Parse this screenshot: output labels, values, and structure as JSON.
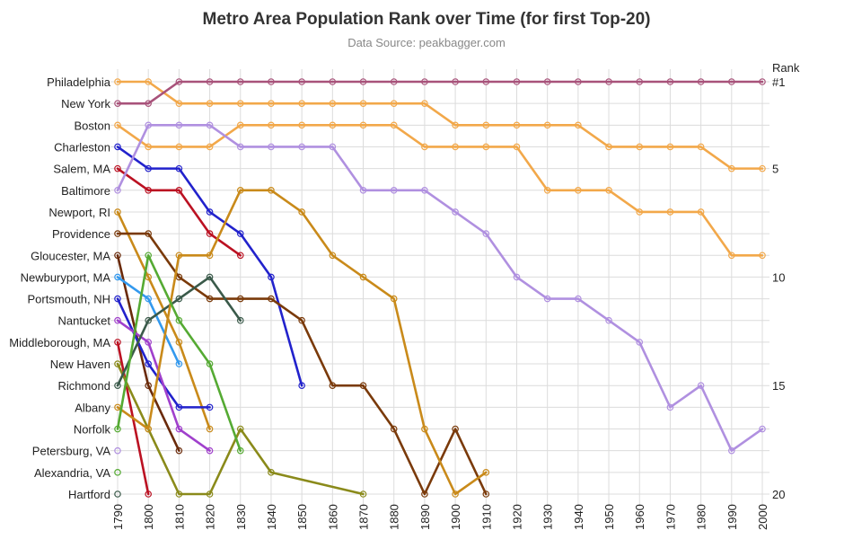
{
  "chart_data": {
    "type": "line",
    "title": "Metro Area Population Rank over Time (for first Top-20)",
    "subtitle": "Data Source: peakbagger.com",
    "y_axis_title": "Rank",
    "y_axis_reversed": true,
    "ylim": [
      1,
      20
    ],
    "y_ticks": [
      {
        "value": 1,
        "label": "#1"
      },
      {
        "value": 5,
        "label": "5"
      },
      {
        "value": 10,
        "label": "10"
      },
      {
        "value": 15,
        "label": "15"
      },
      {
        "value": 20,
        "label": "20"
      }
    ],
    "x": [
      1790,
      1800,
      1810,
      1820,
      1830,
      1840,
      1850,
      1860,
      1870,
      1880,
      1890,
      1900,
      1910,
      1920,
      1930,
      1940,
      1950,
      1960,
      1970,
      1980,
      1990,
      2000
    ],
    "x_tick_labels": [
      "1790",
      "1800",
      "1810",
      "1820",
      "1830",
      "1840",
      "1850",
      "1860",
      "1870",
      "1880",
      "1890",
      "1900",
      "1910",
      "1920",
      "1930",
      "1940",
      "1950",
      "1960",
      "1970",
      "1980",
      "1990",
      "2000"
    ],
    "category_labels": [
      "Philadelphia",
      "New York",
      "Boston",
      "Charleston",
      "Salem, MA",
      "Baltimore",
      "Newport, RI",
      "Providence",
      "Gloucester, MA",
      "Newburyport, MA",
      "Portsmouth, NH",
      "Nantucket",
      "Middleborough, MA",
      "New Haven",
      "Richmond",
      "Albany",
      "Norfolk",
      "Petersburg, VA",
      "Alexandria, VA",
      "Hartford"
    ],
    "grid": true,
    "series": [
      {
        "name": "Philadelphia",
        "color": "#f2a84a",
        "x": [
          1790,
          1800,
          1810,
          1820,
          1830,
          1840,
          1850,
          1860,
          1870,
          1880,
          1890,
          1900,
          1910,
          1920,
          1930,
          1940,
          1950,
          1960,
          1970,
          1980,
          1990,
          2000
        ],
        "ranks": [
          1,
          1,
          2,
          2,
          2,
          2,
          2,
          2,
          2,
          2,
          2,
          3,
          3,
          3,
          3,
          3,
          4,
          4,
          4,
          4,
          5,
          5
        ]
      },
      {
        "name": "New York",
        "color": "#a8527a",
        "x": [
          1790,
          1800,
          1810,
          1820,
          1830,
          1840,
          1850,
          1860,
          1870,
          1880,
          1890,
          1900,
          1910,
          1920,
          1930,
          1940,
          1950,
          1960,
          1970,
          1980,
          1990,
          2000
        ],
        "ranks": [
          2,
          2,
          1,
          1,
          1,
          1,
          1,
          1,
          1,
          1,
          1,
          1,
          1,
          1,
          1,
          1,
          1,
          1,
          1,
          1,
          1,
          1
        ]
      },
      {
        "name": "Boston",
        "color": "#f2a84a",
        "x": [
          1790,
          1800,
          1810,
          1820,
          1830,
          1840,
          1850,
          1860,
          1870,
          1880,
          1890,
          1900,
          1910,
          1920,
          1930,
          1940,
          1950,
          1960,
          1970,
          1980,
          1990,
          2000
        ],
        "ranks": [
          3,
          4,
          4,
          4,
          3,
          3,
          3,
          3,
          3,
          3,
          4,
          4,
          4,
          4,
          6,
          6,
          6,
          7,
          7,
          7,
          9,
          9
        ]
      },
      {
        "name": "Charleston",
        "color": "#2222cc",
        "x": [
          1790,
          1800,
          1810,
          1820,
          1830,
          1840,
          1850
        ],
        "ranks": [
          4,
          5,
          5,
          7,
          8,
          10,
          15
        ]
      },
      {
        "name": "Salem, MA",
        "color": "#bb1122",
        "x": [
          1790,
          1800,
          1810,
          1820,
          1830
        ],
        "ranks": [
          5,
          6,
          6,
          8,
          9
        ]
      },
      {
        "name": "Baltimore",
        "color": "#b090e0",
        "x": [
          1790,
          1800,
          1810,
          1820,
          1830,
          1840,
          1850,
          1860,
          1870,
          1880,
          1890,
          1900,
          1910,
          1920,
          1930,
          1940,
          1950,
          1960,
          1970,
          1980,
          1990,
          2000
        ],
        "ranks": [
          6,
          3,
          3,
          3,
          4,
          4,
          4,
          4,
          6,
          6,
          6,
          7,
          8,
          10,
          11,
          11,
          12,
          13,
          16,
          15,
          18,
          17
        ]
      },
      {
        "name": "Newport, RI",
        "color": "#c98a1a",
        "x": [
          1790,
          1800,
          1810,
          1820
        ],
        "ranks": [
          7,
          10,
          13,
          17
        ]
      },
      {
        "name": "Providence",
        "color": "#7a3a0a",
        "x": [
          1790,
          1800,
          1810,
          1820,
          1830,
          1840,
          1850,
          1860,
          1870,
          1880,
          1890,
          1900,
          1910
        ],
        "ranks": [
          8,
          8,
          10,
          11,
          11,
          11,
          12,
          15,
          15,
          17,
          20,
          17,
          20
        ]
      },
      {
        "name": "Gloucester, MA",
        "color": "#6a2a0a",
        "x": [
          1790,
          1800,
          1810
        ],
        "ranks": [
          9,
          15,
          18
        ]
      },
      {
        "name": "Newburyport, MA",
        "color": "#3399ee",
        "x": [
          1790,
          1800,
          1810
        ],
        "ranks": [
          10,
          11,
          14
        ]
      },
      {
        "name": "Portsmouth, NH",
        "color": "#2222cc",
        "x": [
          1790,
          1800,
          1810,
          1820
        ],
        "ranks": [
          11,
          14,
          16,
          16
        ]
      },
      {
        "name": "Nantucket",
        "color": "#a040cc",
        "x": [
          1790,
          1800,
          1810,
          1820
        ],
        "ranks": [
          12,
          13,
          17,
          18
        ]
      },
      {
        "name": "Middleborough, MA",
        "color": "#bb1122",
        "x": [
          1790,
          1800
        ],
        "ranks": [
          13,
          20
        ]
      },
      {
        "name": "New Haven",
        "color": "#8a8a1a",
        "x": [
          1790,
          1800,
          1810,
          1820,
          1830,
          1840,
          1870
        ],
        "ranks": [
          14,
          17,
          20,
          20,
          17,
          19,
          20
        ]
      },
      {
        "name": "Richmond",
        "color": "#3a5a4a",
        "x": [
          1790,
          1800,
          1810,
          1820,
          1830
        ],
        "ranks": [
          15,
          12,
          11,
          10,
          12
        ]
      },
      {
        "name": "Albany",
        "color": "#c98a1a",
        "x": [
          1790,
          1800,
          1810,
          1820,
          1830,
          1840,
          1850,
          1860,
          1870,
          1880,
          1890,
          1900,
          1910
        ],
        "ranks": [
          16,
          17,
          9,
          9,
          6,
          6,
          7,
          9,
          10,
          11,
          17,
          20,
          19
        ]
      },
      {
        "name": "Norfolk",
        "color": "#55aa33",
        "x": [
          1790,
          1800,
          1810,
          1820,
          1830
        ],
        "ranks": [
          17,
          9,
          12,
          14,
          18
        ]
      },
      {
        "name": "Petersburg, VA",
        "color": "#b090e0",
        "x": [
          1790
        ],
        "ranks": [
          18
        ]
      },
      {
        "name": "Alexandria, VA",
        "color": "#55aa33",
        "x": [
          1790
        ],
        "ranks": [
          19
        ]
      },
      {
        "name": "Hartford",
        "color": "#3a5a4a",
        "x": [
          1790
        ],
        "ranks": [
          20
        ]
      }
    ]
  }
}
